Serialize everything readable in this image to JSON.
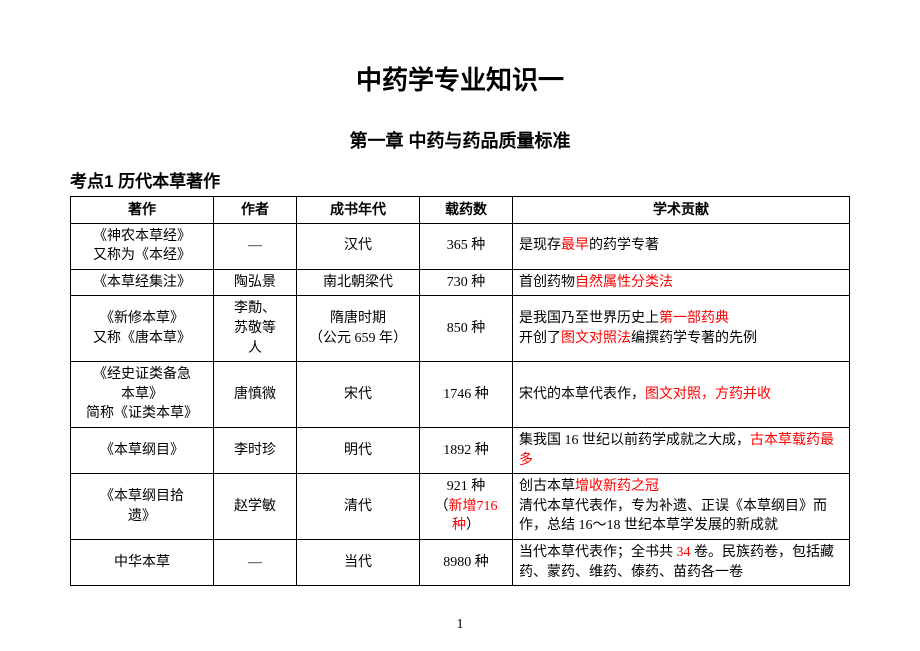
{
  "main_title": "中药学专业知识一",
  "chapter_title": "第一章 中药与药品质量标准",
  "section_title": "考点1 历代本草著作",
  "columns": [
    "著作",
    "作者",
    "成书年代",
    "载药数",
    "学术贡献"
  ],
  "rows": [
    {
      "work_l1": "《神农本草经》",
      "work_l2": "又称为《本经》",
      "author": "—",
      "era": "汉代",
      "count": "365 种",
      "contrib_pre": "是现存",
      "contrib_hl1": "最早",
      "contrib_post": "的药学专著"
    },
    {
      "work": "《本草经集注》",
      "author": "陶弘景",
      "era": "南北朝梁代",
      "count": "730 种",
      "contrib_pre": "首创药物",
      "contrib_hl1": "自然属性分类法"
    },
    {
      "work_l1": "《新修本草》",
      "work_l2": "又称《唐本草》",
      "author_l1": "李勣、",
      "author_l2": "苏敬等",
      "author_l3": "人",
      "era_l1": "隋唐时期",
      "era_l2": "（公元 659 年）",
      "count": "850 种",
      "contrib_l1_pre": "是我国乃至世界历史上",
      "contrib_l1_hl": "第一部药典",
      "contrib_l2_pre": "开创了",
      "contrib_l2_hl": "图文对照法",
      "contrib_l2_post": "编撰药学专著的先例"
    },
    {
      "work_l1": "《经史证类备急",
      "work_l2": "本草》",
      "work_l3": "简称《证类本草》",
      "author": "唐慎微",
      "era": "宋代",
      "count": "1746 种",
      "contrib_pre": "宋代的本草代表作，",
      "contrib_hl1": "图文对照，方药并收"
    },
    {
      "work": "《本草纲目》",
      "author": "李时珍",
      "era": "明代",
      "count": "1892 种",
      "contrib_pre": "集我国 16 世纪以前药学成就之大成，",
      "contrib_hl1": "古本草载药最多"
    },
    {
      "work_l1": "《本草纲目拾",
      "work_l2": "遗》",
      "author": "赵学敏",
      "era": "清代",
      "count_l1": "921 种",
      "count_l2_pre": "（",
      "count_l2_hl": "新增716 种",
      "count_l2_post": "）",
      "contrib_l1_pre": "创古本草",
      "contrib_l1_hl": "增收新药之冠",
      "contrib_l2": "清代本草代表作，专为补遗、正误《本草纲目》而作，总结 16～18 世纪本草学发展的新成就"
    },
    {
      "work": "中华本草",
      "author": "—",
      "era": "当代",
      "count": "8980 种",
      "contrib_pre": "当代本草代表作；全书共 ",
      "contrib_hl1": "34",
      "contrib_post": " 卷。民族药卷，包括藏药、蒙药、维药、傣药、苗药各一卷"
    }
  ],
  "page_number": "1"
}
